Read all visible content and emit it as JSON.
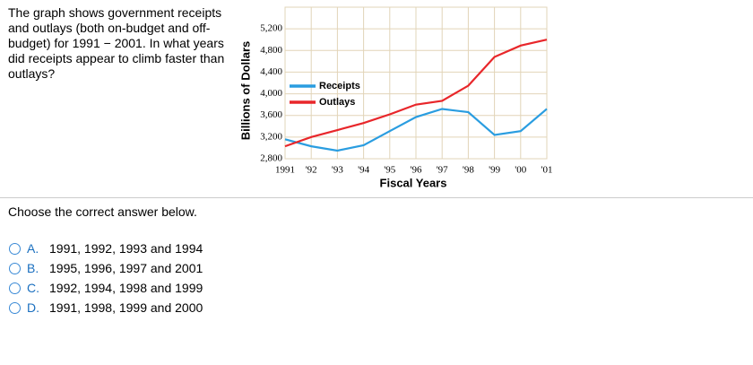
{
  "question": "The graph shows government receipts and outlays (both on-budget and off-budget) for 1991 − 2001. In what years did receipts appear to climb faster than outlays?",
  "prompt": "Choose the correct answer below.",
  "options": [
    {
      "letter": "A.",
      "text": "1991, 1992, 1993 and 1994"
    },
    {
      "letter": "B.",
      "text": "1995, 1996, 1997 and 2001"
    },
    {
      "letter": "C.",
      "text": "1992, 1994, 1998 and 1999"
    },
    {
      "letter": "D.",
      "text": "1991, 1998, 1999 and 2000"
    }
  ],
  "chart_data": {
    "type": "line",
    "x_label": "Fiscal Years",
    "y_label": "Billions of Dollars",
    "categories": [
      "1991",
      "'92",
      "'93",
      "'94",
      "'95",
      "'96",
      "'97",
      "'98",
      "'99",
      "'00",
      "'01"
    ],
    "series": [
      {
        "name": "Receipts",
        "color": "#2a9de0",
        "values": [
          3160,
          3030,
          2950,
          3050,
          3310,
          3570,
          3720,
          3660,
          3240,
          3310,
          3720
        ]
      },
      {
        "name": "Outlays",
        "color": "#e8262a",
        "values": [
          3030,
          3200,
          3330,
          3460,
          3620,
          3800,
          3870,
          4150,
          4680,
          4890,
          5000
        ]
      }
    ],
    "ylim": [
      2800,
      5600
    ],
    "yticks": [
      {
        "value": 2800,
        "label": "2,800"
      },
      {
        "value": 3200,
        "label": "3,200"
      },
      {
        "value": 3600,
        "label": "3,600"
      },
      {
        "value": 4000,
        "label": "4,000"
      },
      {
        "value": 4400,
        "label": "4,400"
      },
      {
        "value": 4800,
        "label": "4,800"
      },
      {
        "value": 5200,
        "label": "5,200"
      }
    ],
    "grid": true,
    "legend": "upper-left"
  }
}
